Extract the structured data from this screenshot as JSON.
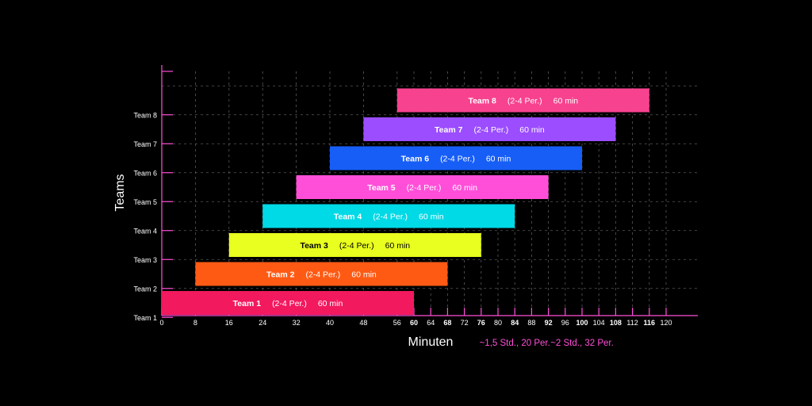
{
  "chart_data": {
    "type": "bar",
    "orientation": "horizontal",
    "xlabel": "Minuten",
    "ylabel": "Teams",
    "xlim": [
      0,
      126
    ],
    "grid": true,
    "categories": [
      "Team 1",
      "Team 2",
      "Team 3",
      "Team 4",
      "Team 5",
      "Team 6",
      "Team 7",
      "Team 8"
    ],
    "x_ticks": [
      0,
      8,
      16,
      24,
      32,
      40,
      48,
      56,
      60,
      64,
      68,
      72,
      76,
      80,
      84,
      88,
      92,
      96,
      100,
      104,
      108,
      112,
      116,
      120
    ],
    "x_ticks_bold": [
      60,
      68,
      76,
      84,
      92,
      100,
      108,
      116
    ],
    "bars": [
      {
        "team": "Team 1",
        "start": 0,
        "end": 60,
        "size": "(2-4 Per.)",
        "duration": "60 min",
        "color": "#f2195f",
        "text_color": "#ffffff"
      },
      {
        "team": "Team 2",
        "start": 8,
        "end": 68,
        "size": "(2-4 Per.)",
        "duration": "60 min",
        "color": "#ff5a14",
        "text_color": "#ffffff"
      },
      {
        "team": "Team 3",
        "start": 16,
        "end": 76,
        "size": "(2-4 Per.)",
        "duration": "60 min",
        "color": "#e9ff1f",
        "text_color": "#000000"
      },
      {
        "team": "Team 4",
        "start": 24,
        "end": 84,
        "size": "(2-4 Per.)",
        "duration": "60 min",
        "color": "#00d9e6",
        "text_color": "#ffffff"
      },
      {
        "team": "Team 5",
        "start": 32,
        "end": 92,
        "size": "(2-4 Per.)",
        "duration": "60 min",
        "color": "#ff4fd8",
        "text_color": "#ffffff"
      },
      {
        "team": "Team 6",
        "start": 40,
        "end": 100,
        "size": "(2-4 Per.)",
        "duration": "60 min",
        "color": "#175ef7",
        "text_color": "#ffffff"
      },
      {
        "team": "Team 7",
        "start": 48,
        "end": 108,
        "size": "(2-4 Per.)",
        "duration": "60 min",
        "color": "#9b4dff",
        "text_color": "#ffffff"
      },
      {
        "team": "Team 8",
        "start": 56,
        "end": 116,
        "size": "(2-4 Per.)",
        "duration": "60 min",
        "color": "#f7428f",
        "text_color": "#ffffff"
      }
    ],
    "annotations": [
      {
        "text": "~1,5 Std., 20 Per.",
        "x": 84,
        "color": "#ff4fd8"
      },
      {
        "text": "~2 Std., 32 Per.",
        "x": 100,
        "color": "#ff4fd8"
      }
    ],
    "axis_color": "#ff4fd8",
    "grid_color": "#5a5a5a"
  }
}
